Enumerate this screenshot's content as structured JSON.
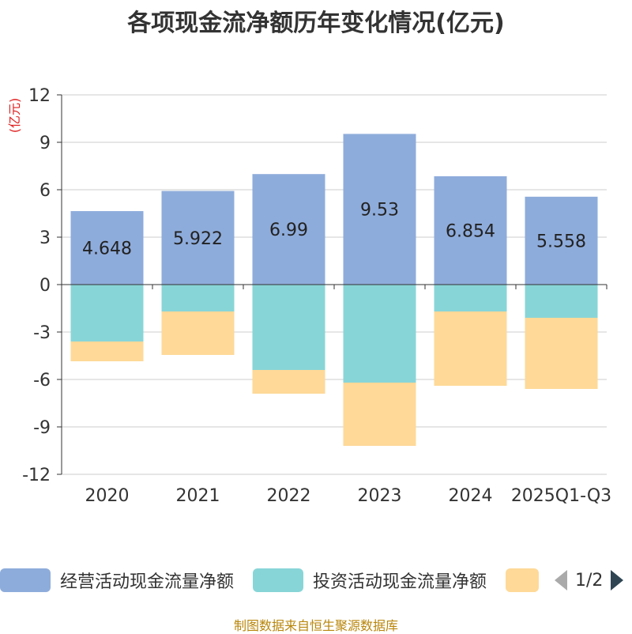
{
  "chart_data": {
    "type": "bar",
    "stacked": true,
    "title": "各项现金流净额历年变化情况(亿元)",
    "ylabel": "(亿元)",
    "xlabel": "",
    "categories": [
      "2020",
      "2021",
      "2022",
      "2023",
      "2024",
      "2025Q1-Q3"
    ],
    "ylim": [
      -12,
      12
    ],
    "yticks": [
      "12",
      "9",
      "6",
      "3",
      "0",
      "-3",
      "-6",
      "-9",
      "-12"
    ],
    "series": [
      {
        "name": "经营活动现金流量净额",
        "color": "#8eacdb",
        "values": [
          4.648,
          5.922,
          6.99,
          9.53,
          6.854,
          5.558
        ],
        "labels": [
          "4.648",
          "5.922",
          "6.99",
          "9.53",
          "6.854",
          "5.558"
        ]
      },
      {
        "name": "投资活动现金流量净额",
        "color": "#88d5d7",
        "values": [
          -3.6,
          -1.7,
          -5.4,
          -6.2,
          -1.7,
          -2.1
        ]
      },
      {
        "name": "",
        "color": "#fed998",
        "values": [
          -1.25,
          -2.75,
          -1.5,
          -4.0,
          -4.7,
          -4.5
        ]
      }
    ],
    "grid": true,
    "legend": "bottom"
  },
  "legend": {
    "items": [
      {
        "label": "经营活动现金流量净额",
        "color": "#8eacdb"
      },
      {
        "label": "投资活动现金流量净额",
        "color": "#88d5d7"
      },
      {
        "label": "",
        "color": "#fed998"
      }
    ],
    "page": "1/2"
  },
  "source": "制图数据来自恒生聚源数据库"
}
